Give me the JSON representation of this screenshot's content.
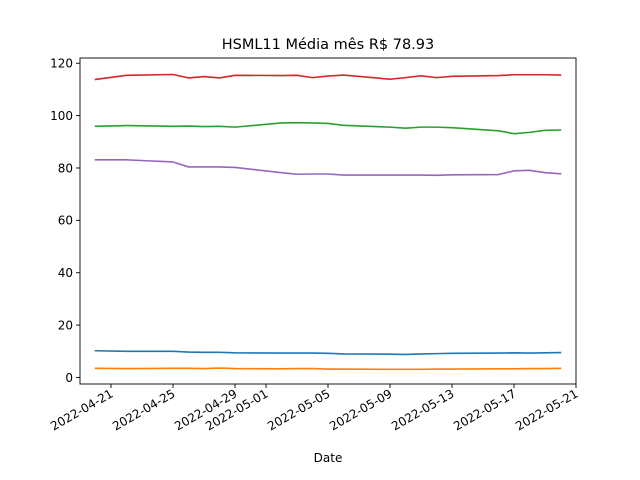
{
  "chart_data": {
    "type": "line",
    "title": "HSML11 Média mês R$ 78.93",
    "xlabel": "Date",
    "ylabel": "",
    "ylim": [
      -2.5,
      122
    ],
    "xlim": [
      "2022-04-19",
      "2022-05-21"
    ],
    "grid": false,
    "legend": "none",
    "x": [
      "2022-04-20",
      "2022-04-22",
      "2022-04-25",
      "2022-04-26",
      "2022-04-27",
      "2022-04-28",
      "2022-04-29",
      "2022-05-02",
      "2022-05-03",
      "2022-05-04",
      "2022-05-05",
      "2022-05-06",
      "2022-05-09",
      "2022-05-10",
      "2022-05-11",
      "2022-05-12",
      "2022-05-13",
      "2022-05-16",
      "2022-05-17",
      "2022-05-18",
      "2022-05-19",
      "2022-05-20"
    ],
    "x_ticks": [
      "2022-04-21",
      "2022-04-25",
      "2022-04-29",
      "2022-05-01",
      "2022-05-05",
      "2022-05-09",
      "2022-05-13",
      "2022-05-17",
      "2022-05-21"
    ],
    "y_ticks": [
      0,
      20,
      40,
      60,
      80,
      100,
      120
    ],
    "series": [
      {
        "color": "#d62728",
        "values": [
          113.8,
          115.4,
          115.7,
          114.4,
          114.9,
          114.4,
          115.4,
          115.3,
          115.4,
          114.5,
          115.1,
          115.5,
          113.9,
          114.5,
          115.2,
          114.5,
          115.0,
          115.3,
          115.6,
          115.6,
          115.6,
          115.5
        ]
      },
      {
        "color": "#2ca02c",
        "values": [
          95.9,
          96.2,
          95.9,
          96.0,
          95.8,
          95.9,
          95.6,
          97.2,
          97.3,
          97.2,
          97.0,
          96.3,
          95.6,
          95.2,
          95.6,
          95.6,
          95.4,
          94.2,
          93.1,
          93.6,
          94.4,
          94.5
        ]
      },
      {
        "color": "#9467bd",
        "values": [
          83.1,
          83.1,
          82.3,
          80.4,
          80.4,
          80.4,
          80.2,
          78.2,
          77.6,
          77.7,
          77.7,
          77.3,
          77.3,
          77.3,
          77.3,
          77.2,
          77.4,
          77.5,
          78.9,
          79.1,
          78.2,
          77.8
        ]
      },
      {
        "color": "#1f77b4",
        "values": [
          10.2,
          10.0,
          10.0,
          9.7,
          9.6,
          9.6,
          9.4,
          9.3,
          9.3,
          9.3,
          9.2,
          9.0,
          8.9,
          8.8,
          9.0,
          9.1,
          9.2,
          9.3,
          9.4,
          9.3,
          9.4,
          9.5
        ]
      },
      {
        "color": "#ff7f0e",
        "values": [
          3.5,
          3.4,
          3.5,
          3.5,
          3.4,
          3.6,
          3.4,
          3.3,
          3.4,
          3.4,
          3.2,
          3.2,
          3.1,
          3.1,
          3.1,
          3.2,
          3.2,
          3.3,
          3.3,
          3.4,
          3.4,
          3.5
        ]
      }
    ]
  }
}
